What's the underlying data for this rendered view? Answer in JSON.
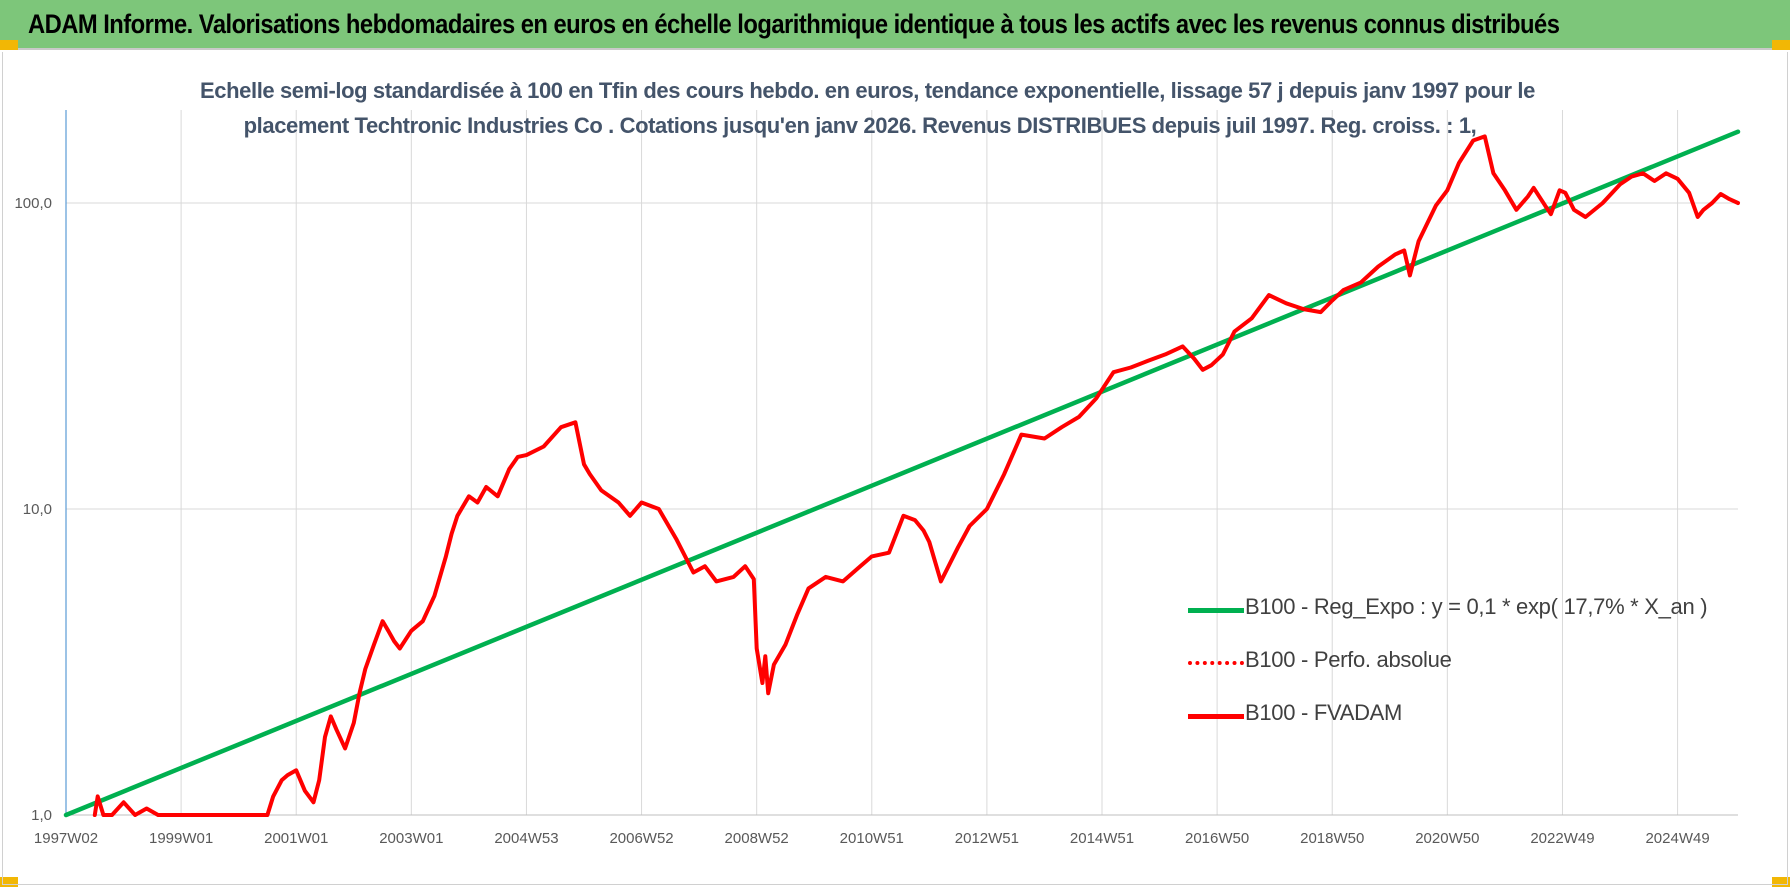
{
  "header": {
    "title": "ADAM Informe. Valorisations hebdomadaires en euros en échelle logarithmique identique à tous les actifs avec les revenus connus distribués"
  },
  "colors": {
    "banner": "#7dc67a",
    "regression": "#00b050",
    "series": "#ff0000",
    "subtitle": "#44546a"
  },
  "chart_data": {
    "type": "line",
    "title_lines": [
      "Echelle semi-log standardisée à 100 en Tfin des cours hebdo. en euros, tendance exponentielle, lissage 57 j depuis janv 1997 pour le",
      "placement Techtronic Industries Co . Cotations jusqu'en janv 2026. Revenus DISTRIBUES depuis juil 1997. Reg. croiss. : 1,"
    ],
    "y_scale": "log",
    "ylim": [
      1,
      180
    ],
    "y_ticks": [
      {
        "value": 1,
        "label": "1,0"
      },
      {
        "value": 10,
        "label": "10,0"
      },
      {
        "value": 100,
        "label": "100,0"
      }
    ],
    "x_range": [
      1997.0,
      2026.05
    ],
    "x_ticks": [
      {
        "x": 1997.0,
        "label": "1997W02"
      },
      {
        "x": 1999.0,
        "label": "1999W01"
      },
      {
        "x": 2001.0,
        "label": "2001W01"
      },
      {
        "x": 2003.0,
        "label": "2003W01"
      },
      {
        "x": 2005.0,
        "label": "2004W53"
      },
      {
        "x": 2007.0,
        "label": "2006W52"
      },
      {
        "x": 2009.0,
        "label": "2008W52"
      },
      {
        "x": 2011.0,
        "label": "2010W51"
      },
      {
        "x": 2013.0,
        "label": "2012W51"
      },
      {
        "x": 2015.0,
        "label": "2014W51"
      },
      {
        "x": 2017.0,
        "label": "2016W50"
      },
      {
        "x": 2019.0,
        "label": "2018W50"
      },
      {
        "x": 2021.0,
        "label": "2020W50"
      },
      {
        "x": 2023.0,
        "label": "2022W49"
      },
      {
        "x": 2025.0,
        "label": "2024W49"
      }
    ],
    "grid": "vertical and horizontal",
    "legend_position": "right",
    "series": [
      {
        "name": "B100 - Reg_Expo : y = 0,1 * exp( 17,7% *  X_an )",
        "style": "solid",
        "color": "#00b050",
        "x": [
          1997.0,
          2026.05
        ],
        "y": [
          1.0,
          171
        ]
      },
      {
        "name": "B100 - Perfo. absolue",
        "style": "dotted",
        "color": "#ff0000",
        "x": [],
        "y": []
      },
      {
        "name": "B100 - FVADAM",
        "style": "solid",
        "color": "#ff0000",
        "x": [
          1997.5,
          1997.55,
          1997.65,
          1997.8,
          1998.0,
          1998.2,
          1998.4,
          1998.6,
          1998.75,
          1998.9,
          1999.0,
          1999.2,
          1999.3,
          1999.4,
          1999.6,
          1999.8,
          2000.0,
          2000.3,
          2000.5,
          2000.6,
          2000.75,
          2000.85,
          2001.0,
          2001.15,
          2001.3,
          2001.4,
          2001.5,
          2001.6,
          2001.7,
          2001.85,
          2002.0,
          2002.1,
          2002.2,
          2002.35,
          2002.5,
          2002.6,
          2002.7,
          2002.8,
          2003.0,
          2003.2,
          2003.4,
          2003.6,
          2003.7,
          2003.8,
          2004.0,
          2004.15,
          2004.3,
          2004.5,
          2004.7,
          2004.85,
          2005.0,
          2005.3,
          2005.6,
          2005.85,
          2006.0,
          2006.1,
          2006.3,
          2006.6,
          2006.8,
          2007.0,
          2007.3,
          2007.6,
          2007.9,
          2008.1,
          2008.3,
          2008.6,
          2008.8,
          2008.95,
          2009.0,
          2009.1,
          2009.15,
          2009.2,
          2009.3,
          2009.5,
          2009.7,
          2009.9,
          2010.2,
          2010.5,
          2010.8,
          2011.0,
          2011.3,
          2011.55,
          2011.75,
          2011.9,
          2012.0,
          2012.2,
          2012.5,
          2012.7,
          2013.0,
          2013.3,
          2013.6,
          2014.0,
          2014.3,
          2014.6,
          2014.9,
          2015.2,
          2015.5,
          2015.8,
          2016.1,
          2016.4,
          2016.6,
          2016.75,
          2016.9,
          2017.1,
          2017.3,
          2017.6,
          2017.9,
          2018.2,
          2018.5,
          2018.8,
          2019.0,
          2019.2,
          2019.5,
          2019.8,
          2020.1,
          2020.25,
          2020.35,
          2020.5,
          2020.8,
          2021.0,
          2021.2,
          2021.45,
          2021.65,
          2021.8,
          2022.0,
          2022.2,
          2022.4,
          2022.5,
          2022.7,
          2022.8,
          2022.95,
          2023.05,
          2023.2,
          2023.4,
          2023.7,
          2024.0,
          2024.2,
          2024.4,
          2024.6,
          2024.8,
          2025.0,
          2025.2,
          2025.35,
          2025.45,
          2025.6,
          2025.75,
          2025.9,
          2026.05
        ],
        "y": [
          1.0,
          1.15,
          1.0,
          0.95,
          1.1,
          1.0,
          1.05,
          0.9,
          0.95,
          0.9,
          0.95,
          0.95,
          0.98,
          1.0,
          0.92,
          0.9,
          0.95,
          0.92,
          0.9,
          1.15,
          1.3,
          1.35,
          1.4,
          1.2,
          1.1,
          1.3,
          1.8,
          2.1,
          1.9,
          1.65,
          2.0,
          2.5,
          3.0,
          3.6,
          4.3,
          4.0,
          3.7,
          3.5,
          4.0,
          4.3,
          5.2,
          7.0,
          8.3,
          9.5,
          11.0,
          10.5,
          11.8,
          11.0,
          13.5,
          14.8,
          15.0,
          16.0,
          18.5,
          19.2,
          14.0,
          13.0,
          11.5,
          10.5,
          9.5,
          10.5,
          10.0,
          8.0,
          6.2,
          6.5,
          5.8,
          6.0,
          6.5,
          5.9,
          3.5,
          2.7,
          3.3,
          2.5,
          3.1,
          3.6,
          4.5,
          5.5,
          6.0,
          5.8,
          6.5,
          7.0,
          7.2,
          9.5,
          9.2,
          8.5,
          7.8,
          5.8,
          7.5,
          8.8,
          10.0,
          13.0,
          17.5,
          17.0,
          18.5,
          20.0,
          23.0,
          28.0,
          29.0,
          30.5,
          32.0,
          34.0,
          31.0,
          28.5,
          29.5,
          32.0,
          38.0,
          42.0,
          50.0,
          47.0,
          45.0,
          44.0,
          48.0,
          52.0,
          55.0,
          62.0,
          68.0,
          70.0,
          58.0,
          75.0,
          98.0,
          110.0,
          135.0,
          160.0,
          165.0,
          125.0,
          110.0,
          95.0,
          105.0,
          112.0,
          98.0,
          92.0,
          110.0,
          108.0,
          95.0,
          90.0,
          100.0,
          115.0,
          122.0,
          125.0,
          118.0,
          125.0,
          120.0,
          108.0,
          90.0,
          95.0,
          100.0,
          107.0,
          103.0,
          100.0
        ]
      }
    ]
  }
}
